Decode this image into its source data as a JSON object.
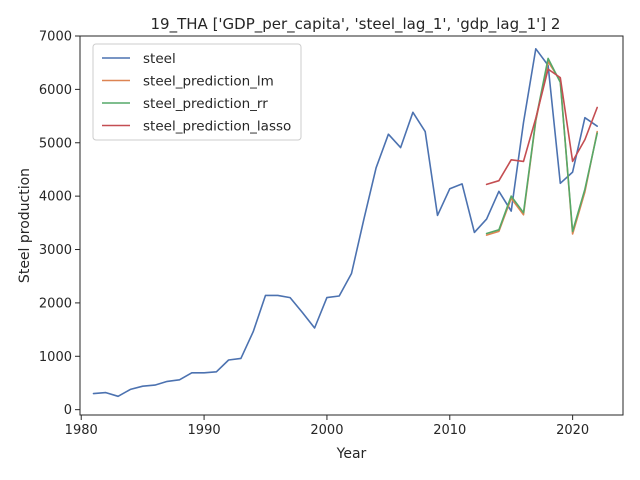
{
  "chart_data": {
    "type": "line",
    "title": "19_THA ['GDP_per_capita', 'steel_lag_1', 'gdp_lag_1'] 2",
    "xlabel": "Year",
    "ylabel": "Steel production",
    "xlim": [
      1979.9,
      2024.1
    ],
    "ylim": [
      -100,
      7000
    ],
    "xticks": [
      1980,
      1990,
      2000,
      2010,
      2020
    ],
    "yticks": [
      0,
      1000,
      2000,
      3000,
      4000,
      5000,
      6000,
      7000
    ],
    "grid": false,
    "legend": "top-left",
    "series": [
      {
        "name": "steel",
        "color": "#4c72b0",
        "x": [
          1981,
          1982,
          1983,
          1984,
          1985,
          1986,
          1987,
          1988,
          1989,
          1990,
          1991,
          1992,
          1993,
          1994,
          1995,
          1996,
          1997,
          1998,
          1999,
          2000,
          2001,
          2002,
          2003,
          2004,
          2005,
          2006,
          2007,
          2008,
          2009,
          2010,
          2011,
          2012,
          2013,
          2014,
          2015,
          2016,
          2017,
          2018,
          2019,
          2020,
          2021,
          2022
        ],
        "y": [
          300,
          320,
          250,
          380,
          440,
          460,
          530,
          560,
          690,
          690,
          710,
          930,
          960,
          1460,
          2140,
          2140,
          2100,
          1820,
          1530,
          2100,
          2130,
          2550,
          3560,
          4530,
          5160,
          4910,
          5570,
          5210,
          3640,
          4140,
          4230,
          3320,
          3570,
          4090,
          3720,
          5380,
          6760,
          6450,
          4240,
          4450,
          5470,
          5310
        ]
      },
      {
        "name": "steel_prediction_lm",
        "color": "#dd8452",
        "x": [
          2013,
          2014,
          2015,
          2016,
          2017,
          2018,
          2019,
          2020,
          2021,
          2022
        ],
        "y": [
          3270,
          3340,
          3960,
          3650,
          5410,
          6520,
          6160,
          3290,
          4080,
          5210
        ]
      },
      {
        "name": "steel_prediction_rr",
        "color": "#55a868",
        "x": [
          2013,
          2014,
          2015,
          2016,
          2017,
          2018,
          2019,
          2020,
          2021,
          2022
        ],
        "y": [
          3300,
          3370,
          4000,
          3690,
          5430,
          6580,
          6130,
          3340,
          4130,
          5180
        ]
      },
      {
        "name": "steel_prediction_lasso",
        "color": "#c44e52",
        "x": [
          2013,
          2014,
          2015,
          2016,
          2017,
          2018,
          2019,
          2020,
          2021,
          2022
        ],
        "y": [
          4220,
          4290,
          4680,
          4650,
          5460,
          6380,
          6220,
          4650,
          5060,
          5660
        ]
      }
    ]
  }
}
